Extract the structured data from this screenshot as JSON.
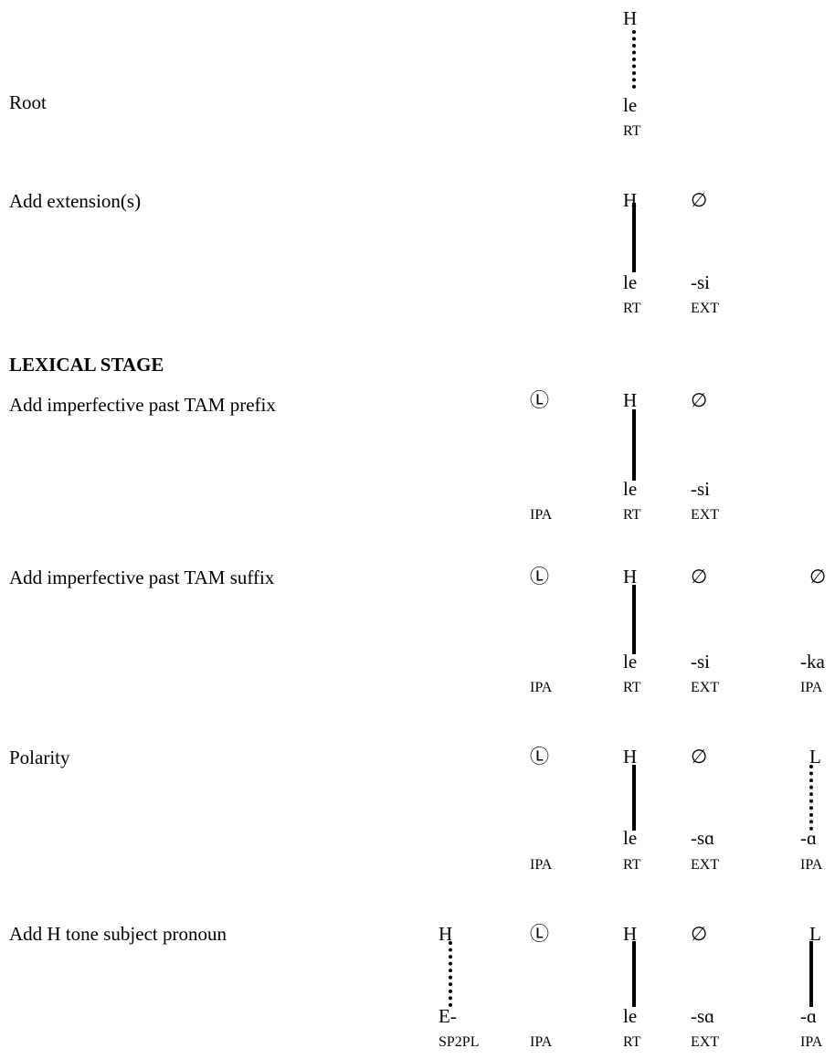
{
  "rows": [
    {
      "label": "Root",
      "tones": [
        {
          "col": "rt",
          "text": "H"
        }
      ],
      "segments": [
        {
          "col": "rt",
          "text": "le"
        }
      ],
      "glosses": [
        {
          "col": "rt",
          "text": "RT"
        }
      ],
      "associations": [
        {
          "col": "rt",
          "style": "dotted"
        }
      ]
    },
    {
      "label": "Add extension(s)",
      "tones": [
        {
          "col": "rt",
          "text": "H"
        },
        {
          "col": "ext",
          "text": "∅"
        }
      ],
      "segments": [
        {
          "col": "rt",
          "text": "le"
        },
        {
          "col": "ext",
          "text": "-si"
        }
      ],
      "glosses": [
        {
          "col": "rt",
          "text": "RT"
        },
        {
          "col": "ext",
          "text": "EXT"
        }
      ],
      "associations": [
        {
          "col": "rt",
          "style": "solid"
        }
      ]
    },
    {
      "heading": "LEXICAL STAGE",
      "label": "Add imperfective past TAM prefix",
      "tones": [
        {
          "col": "ipa1",
          "text": "Ⓛ"
        },
        {
          "col": "rt",
          "text": "H"
        },
        {
          "col": "ext",
          "text": "∅"
        }
      ],
      "segments": [
        {
          "col": "rt",
          "text": "le"
        },
        {
          "col": "ext",
          "text": "-si"
        }
      ],
      "glosses": [
        {
          "col": "ipa1",
          "text": "IPA"
        },
        {
          "col": "rt",
          "text": "RT"
        },
        {
          "col": "ext",
          "text": "EXT"
        }
      ],
      "associations": [
        {
          "col": "rt",
          "style": "solid"
        }
      ]
    },
    {
      "label": "Add imperfective past TAM suffix",
      "tones": [
        {
          "col": "ipa1",
          "text": "Ⓛ"
        },
        {
          "col": "rt",
          "text": "H"
        },
        {
          "col": "ext",
          "text": "∅"
        },
        {
          "col": "ipa2",
          "text": "∅"
        }
      ],
      "segments": [
        {
          "col": "rt",
          "text": "le"
        },
        {
          "col": "ext",
          "text": "-si"
        },
        {
          "col": "ipa2",
          "text": "-ka"
        }
      ],
      "glosses": [
        {
          "col": "ipa1",
          "text": "IPA"
        },
        {
          "col": "rt",
          "text": "RT"
        },
        {
          "col": "ext",
          "text": "EXT"
        },
        {
          "col": "ipa2",
          "text": "IPA"
        }
      ],
      "associations": [
        {
          "col": "rt",
          "style": "solid"
        }
      ]
    },
    {
      "label": "Polarity",
      "tones": [
        {
          "col": "ipa1",
          "text": "Ⓛ"
        },
        {
          "col": "rt",
          "text": "H"
        },
        {
          "col": "ext",
          "text": "∅"
        },
        {
          "col": "ipa2",
          "text": "L"
        }
      ],
      "segments": [
        {
          "col": "rt",
          "text": "le"
        },
        {
          "col": "ext",
          "text": "-sɑ"
        },
        {
          "col": "ipa2",
          "text": "-ɑ"
        }
      ],
      "glosses": [
        {
          "col": "ipa1",
          "text": "IPA"
        },
        {
          "col": "rt",
          "text": "RT"
        },
        {
          "col": "ext",
          "text": "EXT"
        },
        {
          "col": "ipa2",
          "text": "IPA"
        }
      ],
      "associations": [
        {
          "col": "rt",
          "style": "solid"
        },
        {
          "col": "ipa2",
          "style": "dotted"
        }
      ]
    },
    {
      "label": "Add H tone subject pronoun",
      "tones": [
        {
          "col": "sp",
          "text": "H"
        },
        {
          "col": "ipa1",
          "text": "Ⓛ"
        },
        {
          "col": "rt",
          "text": "H"
        },
        {
          "col": "ext",
          "text": "∅"
        },
        {
          "col": "ipa2",
          "text": "L"
        }
      ],
      "segments": [
        {
          "col": "sp",
          "text": "E-"
        },
        {
          "col": "rt",
          "text": "le"
        },
        {
          "col": "ext",
          "text": "-sɑ"
        },
        {
          "col": "ipa2",
          "text": "-ɑ"
        }
      ],
      "glosses": [
        {
          "col": "sp",
          "text": "SP2PL"
        },
        {
          "col": "ipa1",
          "text": "IPA"
        },
        {
          "col": "rt",
          "text": "RT"
        },
        {
          "col": "ext",
          "text": "EXT"
        },
        {
          "col": "ipa2",
          "text": "IPA"
        }
      ],
      "associations": [
        {
          "col": "sp",
          "style": "dotted"
        },
        {
          "col": "rt",
          "style": "solid"
        },
        {
          "col": "ipa2",
          "style": "solid"
        }
      ]
    }
  ]
}
